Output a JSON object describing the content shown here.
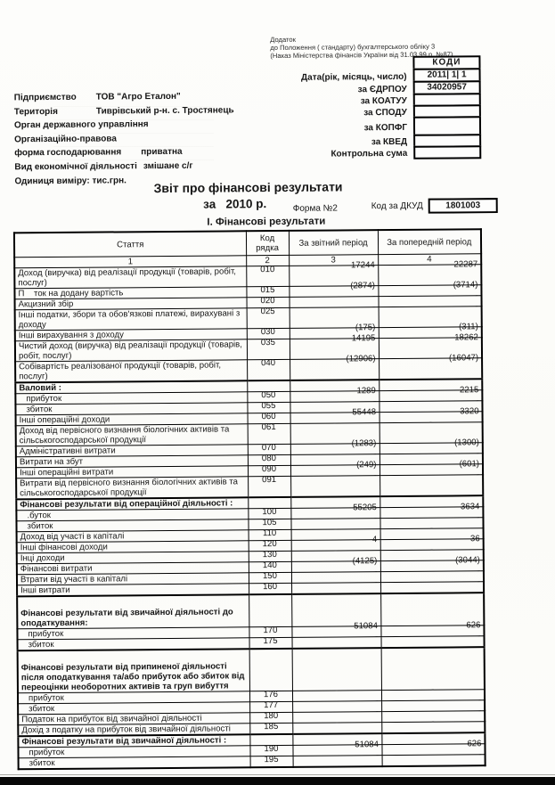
{
  "note": {
    "line1": "Додаток",
    "line2": "до Положення ( стандарту) бухгалтерського обліку 3",
    "line3": "(Наказ Міністерства фінансів України від 31.03.99 р. №87)"
  },
  "codes_box": {
    "rows": [
      {
        "label": "",
        "value": "КОДИ"
      },
      {
        "label": "Дата(рік, місяць, число)",
        "value": "2011| 1| 1"
      },
      {
        "label": "за ЄДРПОУ",
        "value": "34020957"
      },
      {
        "label": "за  КОАТУУ",
        "value": ""
      },
      {
        "label": "за СПОДУ",
        "value": ""
      },
      {
        "label": "за КОПФГ",
        "value": ""
      },
      {
        "label": "за КВЕД",
        "value": ""
      },
      {
        "label": "Контрольна сума",
        "value": ""
      }
    ]
  },
  "org": {
    "rows": [
      {
        "label": "Підприємство",
        "value": "ТОВ \"Агро Еталон\""
      },
      {
        "label": "Територія",
        "value": "Тиврівський р-н. с. Тростянець"
      },
      {
        "label": "Орган державного управління",
        "value": ""
      },
      {
        "label": "Організаційно-правова",
        "value": ""
      },
      {
        "label": "форма господарювання",
        "value": "приватна"
      },
      {
        "label": "Вид економічної діяльності",
        "value": "змішане с/г"
      },
      {
        "label": "Одиниця виміру: тис.грн.",
        "value": ""
      }
    ]
  },
  "title": {
    "main": "Звіт про фінансові результати",
    "year_line": "за   2010 р.",
    "form": "Форма №2",
    "dkud_label": "Код за ДКУД",
    "dkud_value": "1801003",
    "section": "І. Фінансові результати"
  },
  "table": {
    "headers": {
      "col1": "Стаття",
      "col2": "Код рядка",
      "col3": "За звітний період",
      "col4": "За попередній період"
    },
    "numbering": [
      "1",
      "2",
      "3",
      "4"
    ],
    "rows": [
      {
        "type": "data",
        "label": "Доход (виручка) від реалізації продукції (товарів, робіт, послуг)",
        "code": "010",
        "v1": "17244",
        "v2": "22287"
      },
      {
        "type": "data",
        "label": "П    ток на додану вартість",
        "code": "015",
        "v1": "(2874)",
        "v2": "(3714)"
      },
      {
        "type": "data",
        "label": "Акцизний збір",
        "code": "020",
        "v1": "-",
        "v2": "-"
      },
      {
        "type": "data",
        "label": "Інші податки, збори та обов'язкові платежі, вирахувані з доходу",
        "code": "025",
        "v1": "-",
        "v2": "-"
      },
      {
        "type": "data",
        "label": "Інші вирахування з доходу",
        "code": "030",
        "v1": "(175)",
        "v2": "(311)"
      },
      {
        "type": "data",
        "label": "Чистий доход (виручка) від реалізації продукції (товарів, робіт, послуг)",
        "code": "035",
        "v1": "14195",
        "v2": "18262"
      },
      {
        "type": "data",
        "label": "Собівартість реалізованої продукції (товарів, робіт, послуг)",
        "code": "040",
        "v1": "(12906)",
        "v2": "(16047)"
      },
      {
        "type": "group",
        "label": "Валовий :"
      },
      {
        "type": "data",
        "sub": true,
        "label": "прибуток",
        "code": "050",
        "v1": "1289",
        "v2": "2215"
      },
      {
        "type": "data",
        "sub": true,
        "label": "збиток",
        "code": "055",
        "v1": "-",
        "v2": "-"
      },
      {
        "type": "data",
        "label": "Інші операційні доходи",
        "code": "060",
        "v1": "55448",
        "v2": "3320"
      },
      {
        "type": "data",
        "label": "Доход від первісного визнання біологічних активів та сільськогосподарської продукції",
        "code": "061",
        "v1": "-",
        "v2": "-",
        "center": true
      },
      {
        "type": "data",
        "label": "Адміністративні витрати",
        "code": "070",
        "v1": "(1283)",
        "v2": "(1300)"
      },
      {
        "type": "data",
        "label": "Витрати на збут",
        "code": "080",
        "v1": "-",
        "v2": "-"
      },
      {
        "type": "data",
        "label": "Інші операційні витрати",
        "code": "090",
        "v1": "(249)",
        "v2": "(601)"
      },
      {
        "type": "data",
        "label": "Витрати від первісного визнання біологічних активів та сільськогосподарської продукції",
        "code": "091",
        "v1": "-",
        "v2": "-"
      },
      {
        "type": "group",
        "label": "Фінансові результати від операційної діяльності :"
      },
      {
        "type": "data",
        "sub": true,
        "label": ".буток",
        "code": "100",
        "v1": "55205",
        "v2": "3634"
      },
      {
        "type": "data",
        "sub": true,
        "label": "збиток",
        "code": "105",
        "v1": "-",
        "v2": "-"
      },
      {
        "type": "data",
        "label": "Доход від участі в капіталі",
        "code": "110",
        "v1": "-",
        "v2": "-",
        "center": true
      },
      {
        "type": "data",
        "label": "Інші фінансові доходи",
        "code": "120",
        "v1": "4",
        "v2": "36"
      },
      {
        "type": "data",
        "label": "Інці доходи",
        "code": "130",
        "v1": "-",
        "v2": "-",
        "center": true
      },
      {
        "type": "data",
        "label": "Фінансові витрати",
        "code": "140",
        "v1": "(4125)",
        "v2": "(3044)"
      },
      {
        "type": "data",
        "label": "Втрати від участі в капіталі",
        "code": "150",
        "v1": "-",
        "v2": "-"
      },
      {
        "type": "data",
        "label": "Інші витрати",
        "code": "160",
        "v1": "-",
        "v2": "-"
      },
      {
        "type": "group",
        "label": "Фінансові результати від звичайної діяльності до оподаткування:"
      },
      {
        "type": "data",
        "sub": true,
        "label": "прибуток",
        "code": "170",
        "v1": "51084",
        "v2": "626"
      },
      {
        "type": "data",
        "sub": true,
        "label": "збиток",
        "code": "175",
        "v1": "-",
        "v2": "-"
      },
      {
        "type": "group",
        "label": "Фінансові результати від припиненої діяльності після оподаткування та/або прибуток або збиток від переоцінки необоротних активів та груп вибуття"
      },
      {
        "type": "data",
        "sub": true,
        "label": "прибуток",
        "code": "176",
        "v1": "-",
        "v2": "-",
        "center": true
      },
      {
        "type": "data",
        "sub": true,
        "label": "збиток",
        "code": "177",
        "v1": "-",
        "v2": "-"
      },
      {
        "type": "data",
        "label": "Податок на прибуток від звичайної діяльності",
        "code": "180",
        "v1": "-",
        "v2": "-"
      },
      {
        "type": "data",
        "label": "Дохід з податку на прибуток від звичайної діяльності",
        "code": "185",
        "v1": "-",
        "v2": "-",
        "center": true
      },
      {
        "type": "group",
        "label": "Фінансові результати від звичайної діяльності :"
      },
      {
        "type": "data",
        "sub": true,
        "label": "прибуток",
        "code": "190",
        "v1": "51084",
        "v2": "626"
      },
      {
        "type": "data",
        "sub": true,
        "label": "збиток",
        "code": "195",
        "v1": "-",
        "v2": "-"
      }
    ]
  }
}
